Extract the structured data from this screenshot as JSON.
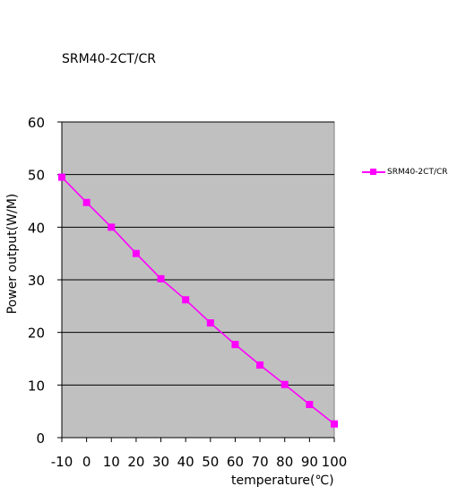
{
  "chart_data": {
    "type": "line",
    "title": "SRM40-2CT/CR",
    "xlabel": "temperature(℃)",
    "ylabel": "Power output(W/M)",
    "categories": [
      "-10",
      "0",
      "10",
      "20",
      "30",
      "40",
      "50",
      "60",
      "70",
      "80",
      "90",
      "100"
    ],
    "y_ticks": [
      "0",
      "10",
      "20",
      "30",
      "40",
      "50",
      "60"
    ],
    "ylim": [
      0,
      60
    ],
    "grid": true,
    "legend": "right",
    "plot_background": "#c0c0c0",
    "series": [
      {
        "name": "SRM40-2CT/CR",
        "color": "#ff00ff",
        "marker": "square",
        "values": [
          49.5,
          44.7,
          40.0,
          35.0,
          30.2,
          26.2,
          21.8,
          17.7,
          13.8,
          10.1,
          6.3,
          2.6
        ]
      }
    ]
  }
}
